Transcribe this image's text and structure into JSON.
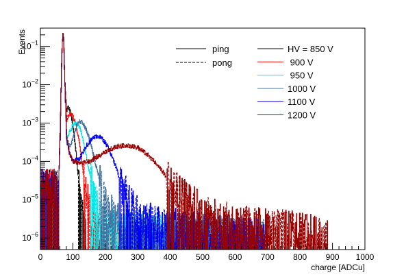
{
  "chart_data": {
    "type": "line",
    "xlabel": "charge [ADCu]",
    "ylabel": "Events",
    "xlim": [
      0,
      1000
    ],
    "ylim": [
      5e-07,
      0.3
    ],
    "yscale": "log",
    "x_ticks": [
      "0",
      "100",
      "200",
      "300",
      "400",
      "500",
      "600",
      "700",
      "800",
      "900",
      "1000"
    ],
    "x_tick_values": [
      0,
      100,
      200,
      300,
      400,
      500,
      600,
      700,
      800,
      900,
      1000
    ],
    "y_ticks": [
      {
        "base": "10",
        "exp": "−1",
        "value": 0.1
      },
      {
        "base": "10",
        "exp": "−2",
        "value": 0.01
      },
      {
        "base": "10",
        "exp": "−3",
        "value": 0.001
      },
      {
        "base": "10",
        "exp": "−4",
        "value": 0.0001
      },
      {
        "base": "10",
        "exp": "−5",
        "value": 1e-05
      },
      {
        "base": "10",
        "exp": "−6",
        "value": 1e-06
      }
    ],
    "grid": false,
    "legend_position": "top-right",
    "style_legend": [
      {
        "name": "ping",
        "dash": "solid"
      },
      {
        "name": "pong",
        "dash": "dashed"
      }
    ],
    "series": [
      {
        "name": "HV = 850 V",
        "color": "#000000",
        "x": [
          55,
          60,
          65,
          68,
          70,
          72,
          75,
          80,
          85,
          90,
          95,
          100,
          110,
          120,
          130,
          140
        ],
        "y": [
          2e-05,
          0.0005,
          0.05,
          0.19,
          0.2,
          0.08,
          0.01,
          0.002,
          0.0025,
          0.0022,
          0.0015,
          0.0008,
          0.00015,
          2e-05,
          4e-06,
          1e-06
        ]
      },
      {
        "name": " 900 V",
        "color": "#ff0000",
        "x": [
          55,
          60,
          65,
          68,
          70,
          72,
          75,
          80,
          90,
          100,
          110,
          120,
          130,
          150,
          170,
          190
        ],
        "y": [
          2e-05,
          0.0004,
          0.05,
          0.19,
          0.2,
          0.08,
          0.01,
          0.0012,
          0.0018,
          0.0015,
          0.0008,
          0.0003,
          6e-05,
          5e-06,
          1.5e-06,
          1e-06
        ]
      },
      {
        "name": " 950 V",
        "color": "#00e8e8",
        "x": [
          55,
          60,
          65,
          68,
          70,
          72,
          75,
          80,
          90,
          100,
          110,
          120,
          130,
          140,
          160,
          180,
          200,
          300,
          400,
          560
        ],
        "y": [
          2e-05,
          0.0004,
          0.05,
          0.19,
          0.2,
          0.08,
          0.01,
          0.0004,
          0.0006,
          0.0009,
          0.001,
          0.0008,
          0.0004,
          0.00015,
          2e-05,
          4e-06,
          2e-06,
          1.5e-06,
          1.5e-06,
          1.2e-06
        ]
      },
      {
        "name": "1000 V",
        "color": "#3f6f9f",
        "x": [
          55,
          60,
          65,
          68,
          70,
          72,
          75,
          80,
          90,
          100,
          110,
          120,
          130,
          140,
          150,
          170,
          190,
          210,
          250,
          350,
          500,
          650,
          690
        ],
        "y": [
          2e-05,
          0.0004,
          0.05,
          0.19,
          0.2,
          0.08,
          0.01,
          0.0003,
          0.00025,
          0.0004,
          0.0008,
          0.0011,
          0.001,
          0.0007,
          0.0004,
          8e-05,
          2e-05,
          6e-06,
          2e-06,
          1.5e-06,
          1.5e-06,
          1.2e-06,
          1e-06
        ]
      },
      {
        "name": "1100 V",
        "color": "#0000ee",
        "x": [
          55,
          60,
          65,
          68,
          70,
          72,
          75,
          80,
          90,
          100,
          120,
          140,
          160,
          175,
          190,
          210,
          230,
          250,
          270,
          290,
          320,
          380,
          450,
          500,
          600,
          690
        ],
        "y": [
          2e-05,
          0.0004,
          0.05,
          0.19,
          0.2,
          0.08,
          0.01,
          0.0004,
          0.00015,
          0.0001,
          0.00012,
          0.00025,
          0.0004,
          0.00045,
          0.0004,
          0.00022,
          8e-05,
          2.5e-05,
          1e-05,
          5e-06,
          3e-06,
          2e-06,
          1.8e-06,
          1.5e-06,
          1.3e-06,
          1e-06
        ]
      },
      {
        "name": "1200 V",
        "color": "#990000",
        "x": [
          55,
          60,
          65,
          68,
          70,
          72,
          75,
          80,
          90,
          100,
          120,
          150,
          180,
          210,
          240,
          270,
          300,
          330,
          360,
          400,
          450,
          500,
          550,
          600,
          650,
          700,
          750,
          800,
          850,
          885
        ],
        "y": [
          2e-05,
          0.0004,
          0.05,
          0.19,
          0.2,
          0.08,
          0.01,
          0.0005,
          0.00015,
          0.0001,
          9e-05,
          0.0001,
          0.00014,
          0.0002,
          0.00025,
          0.00026,
          0.00023,
          0.00015,
          8e-05,
          3e-05,
          1e-05,
          5e-06,
          3e-06,
          2.5e-06,
          2.2e-06,
          2e-06,
          1.8e-06,
          1.5e-06,
          1.3e-06,
          1e-06
        ]
      }
    ]
  }
}
